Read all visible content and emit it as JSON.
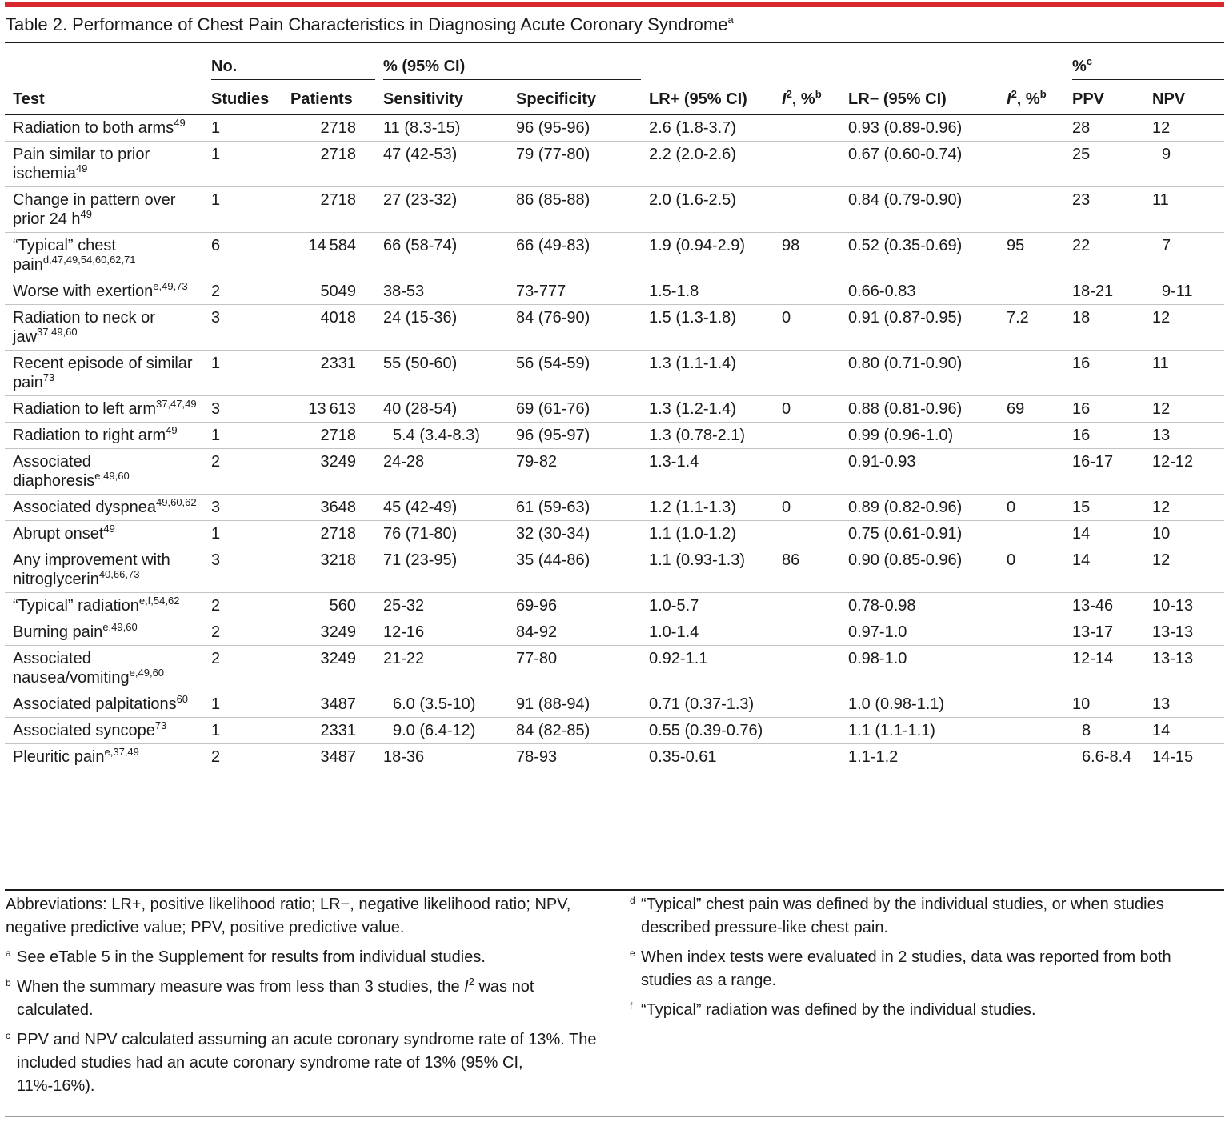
{
  "title": "Table 2. Performance of Chest Pain Characteristics in Diagnosing Acute Coronary Syndrome",
  "title_note": "a",
  "header": {
    "no_group": "No.",
    "ci_group": "% (95% CI)",
    "pct_group": "%",
    "pct_note": "c",
    "test": "Test",
    "studies": "Studies",
    "patients": "Patients",
    "sensitivity": "Sensitivity",
    "specificity": "Specificity",
    "lr_pos": "LR+ (95% CI)",
    "i2_pos": "I",
    "i2_pos_rest": "2",
    "i2_pos_unit": ", %",
    "i2_pos_note": "b",
    "lr_neg": "LR− (95% CI)",
    "i2_neg": "I",
    "i2_neg_rest": "2",
    "i2_neg_unit": ", %",
    "i2_neg_note": "b",
    "ppv": "PPV",
    "npv": "NPV"
  },
  "rows": [
    {
      "test": "Radiation to both arms",
      "sup": "49",
      "studies": "1",
      "patients": "2718",
      "sens": "11 (8.3-15)",
      "sens_indent": false,
      "spec": "96 (95-96)",
      "lrp": "2.6 (1.8-3.7)",
      "i2p": "",
      "lrn": "0.93 (0.89-0.96)",
      "i2n": "",
      "ppv": "28",
      "npv": "12"
    },
    {
      "test": "Pain similar to prior ischemia",
      "sup": "49",
      "studies": "1",
      "patients": "2718",
      "sens": "47 (42-53)",
      "sens_indent": false,
      "spec": "79 (77-80)",
      "lrp": "2.2 (2.0-2.6)",
      "i2p": "",
      "lrn": "0.67 (0.60-0.74)",
      "i2n": "",
      "ppv": "25",
      "npv": "9"
    },
    {
      "test": "Change in pattern over prior 24 h",
      "sup": "49",
      "studies": "1",
      "patients": "2718",
      "sens": "27 (23-32)",
      "sens_indent": false,
      "spec": "86 (85-88)",
      "lrp": "2.0 (1.6-2.5)",
      "i2p": "",
      "lrn": "0.84 (0.79-0.90)",
      "i2n": "",
      "ppv": "23",
      "npv": "11"
    },
    {
      "test": "“Typical” chest pain",
      "sup": "d,47,49,54,60,62,71",
      "studies": "6",
      "patients": "14 584",
      "sens": "66 (58-74)",
      "sens_indent": false,
      "spec": "66 (49-83)",
      "lrp": "1.9 (0.94-2.9)",
      "i2p": "98",
      "lrn": "0.52 (0.35-0.69)",
      "i2n": "95",
      "ppv": "22",
      "npv": "7"
    },
    {
      "test": "Worse with exertion",
      "sup": "e,49,73",
      "studies": "2",
      "patients": "5049",
      "sens": "38-53",
      "sens_indent": false,
      "spec": "73-777",
      "lrp": "1.5-1.8",
      "i2p": "",
      "lrn": "0.66-0.83",
      "i2n": "",
      "ppv": "18-21",
      "npv": "9-11"
    },
    {
      "test": "Radiation to neck or jaw",
      "sup": "37,49,60",
      "studies": "3",
      "patients": "4018",
      "sens": "24 (15-36)",
      "sens_indent": false,
      "spec": "84 (76-90)",
      "lrp": "1.5 (1.3-1.8)",
      "i2p": "0",
      "lrn": "0.91 (0.87-0.95)",
      "i2n": "7.2",
      "ppv": "18",
      "npv": "12"
    },
    {
      "test": "Recent episode of similar pain",
      "sup": "73",
      "studies": "1",
      "patients": "2331",
      "sens": "55 (50-60)",
      "sens_indent": false,
      "spec": "56 (54-59)",
      "lrp": "1.3 (1.1-1.4)",
      "i2p": "",
      "lrn": "0.80 (0.71-0.90)",
      "i2n": "",
      "ppv": "16",
      "npv": "11"
    },
    {
      "test": "Radiation to left arm",
      "sup": "37,47,49",
      "studies": "3",
      "patients": "13 613",
      "sens": "40 (28-54)",
      "sens_indent": false,
      "spec": "69 (61-76)",
      "lrp": "1.3 (1.2-1.4)",
      "i2p": "0",
      "lrn": "0.88 (0.81-0.96)",
      "i2n": "69",
      "ppv": "16",
      "npv": "12"
    },
    {
      "test": "Radiation to right arm",
      "sup": "49",
      "studies": "1",
      "patients": "2718",
      "sens": "5.4 (3.4-8.3)",
      "sens_indent": true,
      "spec": "96 (95-97)",
      "lrp": "1.3 (0.78-2.1)",
      "i2p": "",
      "lrn": "0.99 (0.96-1.0)",
      "i2n": "",
      "ppv": "16",
      "npv": "13"
    },
    {
      "test": "Associated diaphoresis",
      "sup": "e,49,60",
      "studies": "2",
      "patients": "3249",
      "sens": "24-28",
      "sens_indent": false,
      "spec": "79-82",
      "lrp": "1.3-1.4",
      "i2p": "",
      "lrn": "0.91-0.93",
      "i2n": "",
      "ppv": "16-17",
      "npv": "12-12"
    },
    {
      "test": "Associated dyspnea",
      "sup": "49,60,62",
      "studies": "3",
      "patients": "3648",
      "sens": "45 (42-49)",
      "sens_indent": false,
      "spec": "61 (59-63)",
      "lrp": "1.2 (1.1-1.3)",
      "i2p": "0",
      "lrn": "0.89 (0.82-0.96)",
      "i2n": "0",
      "ppv": "15",
      "npv": "12"
    },
    {
      "test": "Abrupt onset",
      "sup": "49",
      "studies": "1",
      "patients": "2718",
      "sens": "76 (71-80)",
      "sens_indent": false,
      "spec": "32 (30-34)",
      "lrp": "1.1 (1.0-1.2)",
      "i2p": "",
      "lrn": "0.75 (0.61-0.91)",
      "i2n": "",
      "ppv": "14",
      "npv": "10"
    },
    {
      "test": "Any improvement with nitroglycerin",
      "sup": "40,66,73",
      "studies": "3",
      "patients": "3218",
      "sens": "71 (23-95)",
      "sens_indent": false,
      "spec": "35 (44-86)",
      "lrp": "1.1 (0.93-1.3)",
      "i2p": "86",
      "lrn": "0.90 (0.85-0.96)",
      "i2n": "0",
      "ppv": "14",
      "npv": "12"
    },
    {
      "test": "“Typical” radiation",
      "sup": "e,f,54,62",
      "studies": "2",
      "patients": "560",
      "sens": "25-32",
      "sens_indent": false,
      "spec": "69-96",
      "lrp": "1.0-5.7",
      "i2p": "",
      "lrn": "0.78-0.98",
      "i2n": "",
      "ppv": "13-46",
      "npv": "10-13"
    },
    {
      "test": "Burning pain",
      "sup": "e,49,60",
      "studies": "2",
      "patients": "3249",
      "sens": "12-16",
      "sens_indent": false,
      "spec": "84-92",
      "lrp": "1.0-1.4",
      "i2p": "",
      "lrn": "0.97-1.0",
      "i2n": "",
      "ppv": "13-17",
      "npv": "13-13"
    },
    {
      "test": "Associated nausea/vomiting",
      "sup": "e,49,60",
      "studies": "2",
      "patients": "3249",
      "sens": "21-22",
      "sens_indent": false,
      "spec": "77-80",
      "lrp": "0.92-1.1",
      "i2p": "",
      "lrn": "0.98-1.0",
      "i2n": "",
      "ppv": "12-14",
      "npv": "13-13"
    },
    {
      "test": "Associated palpitations",
      "sup": "60",
      "studies": "1",
      "patients": "3487",
      "sens": "6.0 (3.5-10)",
      "sens_indent": true,
      "spec": "91 (88-94)",
      "lrp": "0.71 (0.37-1.3)",
      "i2p": "",
      "lrn": "1.0 (0.98-1.1)",
      "i2n": "",
      "ppv": "10",
      "npv": "13"
    },
    {
      "test": "Associated syncope",
      "sup": "73",
      "studies": "1",
      "patients": "2331",
      "sens": "9.0 (6.4-12)",
      "sens_indent": true,
      "spec": "84 (82-85)",
      "lrp": "0.55 (0.39-0.76)",
      "i2p": "",
      "lrn": "1.1 (1.1-1.1)",
      "i2n": "",
      "ppv": "8",
      "npv": "14"
    },
    {
      "test": "Pleuritic pain",
      "sup": "e,37,49",
      "studies": "2",
      "patients": "3487",
      "sens": "18-36",
      "sens_indent": false,
      "spec": "78-93",
      "lrp": "0.35-0.61",
      "i2p": "",
      "lrn": "1.1-1.2",
      "i2n": "",
      "ppv": "6.6-8.4",
      "npv": "14-15"
    }
  ],
  "notes": {
    "abbreviations": "Abbreviations: LR+, positive likelihood ratio; LR−, negative likelihood ratio; NPV, negative predictive value; PPV, positive predictive value.",
    "a_mark": "a",
    "a": "See eTable 5 in the Supplement for results from individual studies.",
    "b_mark": "b",
    "b_pre": "When the summary measure was from less than 3 studies, the ",
    "b_i": "I",
    "b_sup": "2",
    "b_post": " was not calculated.",
    "c_mark": "c",
    "c": "PPV and NPV calculated assuming an acute coronary syndrome rate of 13%. The included studies had an acute coronary syndrome rate of 13% (95% CI, 11%-16%).",
    "d_mark": "d",
    "d": "“Typical” chest pain was defined by the individual studies, or when studies described pressure-like chest pain.",
    "e_mark": "e",
    "e": "When index tests were evaluated in 2 studies, data was reported from both studies as a range.",
    "f_mark": "f",
    "f": "“Typical” radiation was defined by the individual studies."
  }
}
